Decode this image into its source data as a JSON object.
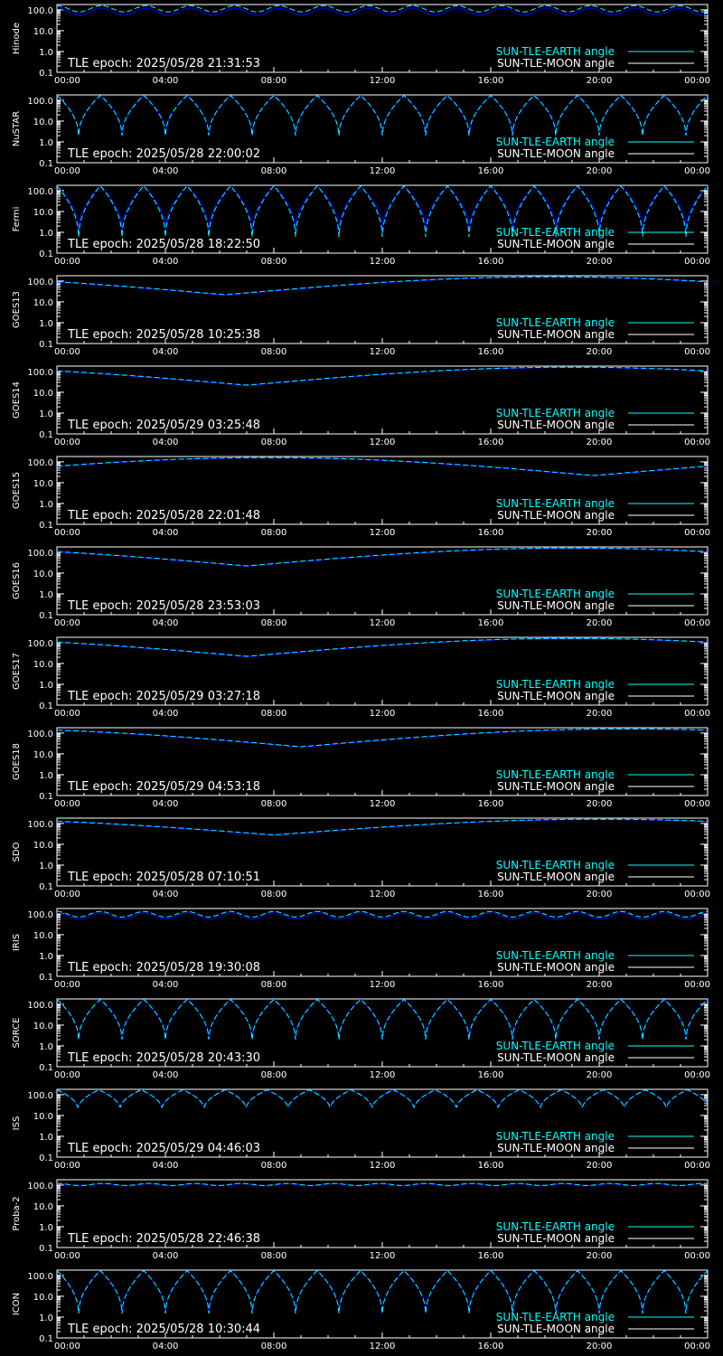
{
  "colors": {
    "background": "#000000",
    "axes": "#ffffff",
    "earth": "#00ffff",
    "moon": "#0000ff",
    "text": "#ffffff"
  },
  "xticks": [
    "00:00",
    "04:00",
    "08:00",
    "12:00",
    "16:00",
    "20:00",
    "00:00"
  ],
  "yticks": [
    "100.0",
    "10.0",
    "1.0",
    "0.1"
  ],
  "legend": {
    "earth_label": "SUN-TLE-EARTH angle",
    "moon_label": "SUN-TLE-MOON angle"
  },
  "chart_data": [
    {
      "type": "line",
      "satellite": "Hinode",
      "tle_epoch": "TLE epoch: 2025/05/28 21:31:53",
      "ylim": [
        0.1,
        180
      ],
      "log_y": true,
      "xlim": [
        0,
        24
      ],
      "x_unit": "hours UT",
      "earth": {
        "kind": "wave",
        "period_h": 1.64,
        "min": 80,
        "max": 160
      },
      "moon": {
        "kind": "wave",
        "period_h": 1.64,
        "min": 55,
        "max": 120
      }
    },
    {
      "type": "line",
      "satellite": "NuSTAR",
      "tle_epoch": "TLE epoch: 2025/05/28 22:00:02",
      "ylim": [
        0.1,
        180
      ],
      "log_y": true,
      "xlim": [
        0,
        24
      ],
      "x_unit": "hours UT",
      "earth": {
        "kind": "dip",
        "period_h": 1.6,
        "min": 2.0,
        "max": 170
      },
      "moon": {
        "kind": "dip",
        "period_h": 1.6,
        "min": 2.0,
        "max": 170
      }
    },
    {
      "type": "line",
      "satellite": "Fermi",
      "tle_epoch": "TLE epoch: 2025/05/28 18:22:50",
      "ylim": [
        0.1,
        180
      ],
      "log_y": true,
      "xlim": [
        0,
        24
      ],
      "x_unit": "hours UT",
      "earth": {
        "kind": "dip",
        "period_h": 1.6,
        "min": 0.6,
        "max": 170
      },
      "moon": {
        "kind": "dip",
        "period_h": 1.6,
        "min": 1.2,
        "max": 170
      }
    },
    {
      "type": "line",
      "satellite": "GOES13",
      "tle_epoch": "TLE epoch: 2025/05/28 10:25:38",
      "ylim": [
        0.1,
        180
      ],
      "log_y": true,
      "xlim": [
        0,
        24
      ],
      "x_unit": "hours UT",
      "earth": {
        "kind": "slow",
        "t_min": 6.2,
        "min": 22,
        "max": 160
      },
      "moon": {
        "kind": "slow",
        "t_min": 6.2,
        "min": 21,
        "max": 155
      }
    },
    {
      "type": "line",
      "satellite": "GOES14",
      "tle_epoch": "TLE epoch: 2025/05/29 03:25:48",
      "ylim": [
        0.1,
        180
      ],
      "log_y": true,
      "xlim": [
        0,
        24
      ],
      "x_unit": "hours UT",
      "earth": {
        "kind": "slow",
        "t_min": 7.0,
        "min": 22,
        "max": 160
      },
      "moon": {
        "kind": "slow",
        "t_min": 7.0,
        "min": 21,
        "max": 155
      }
    },
    {
      "type": "line",
      "satellite": "GOES15",
      "tle_epoch": "TLE epoch: 2025/05/28 22:01:48",
      "ylim": [
        0.1,
        180
      ],
      "log_y": true,
      "xlim": [
        0,
        24
      ],
      "x_unit": "hours UT",
      "earth": {
        "kind": "slow",
        "t_min": 19.8,
        "min": 22,
        "max": 160
      },
      "moon": {
        "kind": "slow",
        "t_min": 19.8,
        "min": 21,
        "max": 155
      }
    },
    {
      "type": "line",
      "satellite": "GOES16",
      "tle_epoch": "TLE epoch: 2025/05/28 23:53:03",
      "ylim": [
        0.1,
        180
      ],
      "log_y": true,
      "xlim": [
        0,
        24
      ],
      "x_unit": "hours UT",
      "earth": {
        "kind": "slow",
        "t_min": 7.0,
        "min": 22,
        "max": 160
      },
      "moon": {
        "kind": "slow",
        "t_min": 7.0,
        "min": 21,
        "max": 155
      }
    },
    {
      "type": "line",
      "satellite": "GOES17",
      "tle_epoch": "TLE epoch: 2025/05/29 03:27:18",
      "ylim": [
        0.1,
        180
      ],
      "log_y": true,
      "xlim": [
        0,
        24
      ],
      "x_unit": "hours UT",
      "earth": {
        "kind": "slow",
        "t_min": 7.0,
        "min": 22,
        "max": 160
      },
      "moon": {
        "kind": "slow",
        "t_min": 7.0,
        "min": 21,
        "max": 155
      }
    },
    {
      "type": "line",
      "satellite": "GOES18",
      "tle_epoch": "TLE epoch: 2025/05/29 04:53:18",
      "ylim": [
        0.1,
        180
      ],
      "log_y": true,
      "xlim": [
        0,
        24
      ],
      "x_unit": "hours UT",
      "earth": {
        "kind": "slow",
        "t_min": 9.0,
        "min": 22,
        "max": 160
      },
      "moon": {
        "kind": "slow",
        "t_min": 9.0,
        "min": 21,
        "max": 155
      }
    },
    {
      "type": "line",
      "satellite": "SDO",
      "tle_epoch": "TLE epoch: 2025/05/28 07:10:51",
      "ylim": [
        0.1,
        180
      ],
      "log_y": true,
      "xlim": [
        0,
        24
      ],
      "x_unit": "hours UT",
      "earth": {
        "kind": "slow",
        "t_min": 8.0,
        "min": 28,
        "max": 160
      },
      "moon": {
        "kind": "slow",
        "t_min": 8.0,
        "min": 27,
        "max": 155
      }
    },
    {
      "type": "line",
      "satellite": "IRIS",
      "tle_epoch": "TLE epoch: 2025/05/28 19:30:08",
      "ylim": [
        0.1,
        180
      ],
      "log_y": true,
      "xlim": [
        0,
        24
      ],
      "x_unit": "hours UT",
      "earth": {
        "kind": "wave",
        "period_h": 1.6,
        "min": 70,
        "max": 130
      },
      "moon": {
        "kind": "wave",
        "period_h": 1.6,
        "min": 55,
        "max": 110
      }
    },
    {
      "type": "line",
      "satellite": "SORCE",
      "tle_epoch": "TLE epoch: 2025/05/28 20:43:30",
      "ylim": [
        0.1,
        180
      ],
      "log_y": true,
      "xlim": [
        0,
        24
      ],
      "x_unit": "hours UT",
      "earth": {
        "kind": "dip",
        "period_h": 1.6,
        "min": 2.0,
        "max": 170
      },
      "moon": {
        "kind": "dip",
        "period_h": 1.6,
        "min": 2.0,
        "max": 170
      }
    },
    {
      "type": "line",
      "satellite": "ISS",
      "tle_epoch": "TLE epoch: 2025/05/29 04:46:03",
      "ylim": [
        0.1,
        180
      ],
      "log_y": true,
      "xlim": [
        0,
        24
      ],
      "x_unit": "hours UT",
      "earth": {
        "kind": "dip",
        "period_h": 1.55,
        "min": 20,
        "max": 170
      },
      "moon": {
        "kind": "dip",
        "period_h": 1.55,
        "min": 20,
        "max": 170
      }
    },
    {
      "type": "line",
      "satellite": "Proba-2",
      "tle_epoch": "TLE epoch: 2025/05/28 22:46:38",
      "ylim": [
        0.1,
        180
      ],
      "log_y": true,
      "xlim": [
        0,
        24
      ],
      "x_unit": "hours UT",
      "earth": {
        "kind": "wave",
        "period_h": 1.7,
        "min": 95,
        "max": 120
      },
      "moon": {
        "kind": "wave",
        "period_h": 1.7,
        "min": 90,
        "max": 115
      }
    },
    {
      "type": "line",
      "satellite": "ICON",
      "tle_epoch": "TLE epoch: 2025/05/28 10:30:44",
      "ylim": [
        0.1,
        180
      ],
      "log_y": true,
      "xlim": [
        0,
        24
      ],
      "x_unit": "hours UT",
      "earth": {
        "kind": "dip",
        "period_h": 1.6,
        "min": 1.5,
        "max": 170
      },
      "moon": {
        "kind": "dip",
        "period_h": 1.6,
        "min": 1.5,
        "max": 170
      }
    }
  ]
}
